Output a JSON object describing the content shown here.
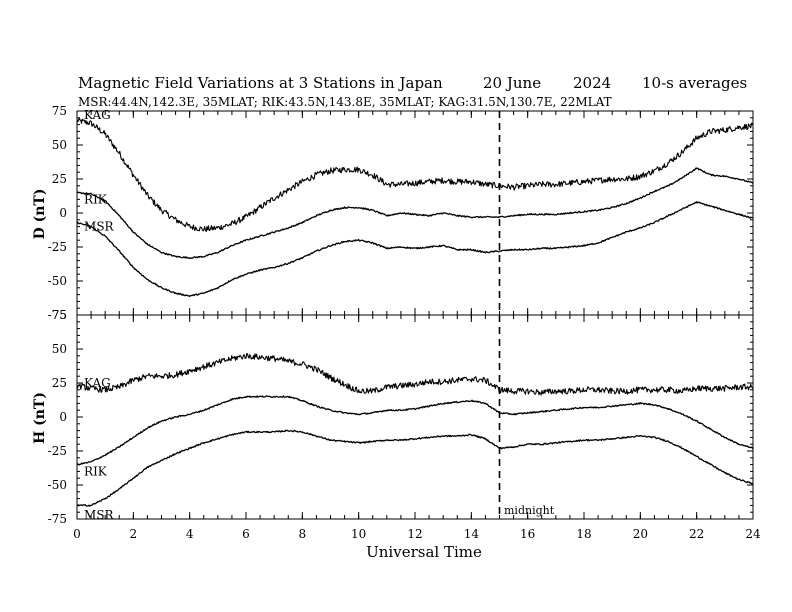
{
  "chart_data": {
    "type": "line",
    "title": {
      "main": "Magnetic Field Variations at 3 Stations in Japan",
      "date": "20 June",
      "year": "2024",
      "note": "10-s averages"
    },
    "subtitle": "MSR:44.4N,142.3E, 35MLAT;  RIK:43.5N,143.8E, 35MLAT;  KAG:31.5N,130.7E, 22MLAT",
    "xlabel": "Universal Time",
    "xlim": [
      0,
      24
    ],
    "x_ticks": [
      "0",
      "2",
      "4",
      "6",
      "8",
      "10",
      "12",
      "14",
      "16",
      "18",
      "20",
      "22",
      "24"
    ],
    "midnight": {
      "x": 15,
      "label": "midnight"
    },
    "panels": [
      {
        "ylabel": "D (nT)",
        "ylim": [
          -75,
          75
        ],
        "y_ticks": [
          "75",
          "50",
          "25",
          "0",
          "-25",
          "-50",
          "-75"
        ],
        "series": [
          {
            "name": "KAG",
            "noise": 2.2,
            "x": [
              0,
              0.5,
              1,
              1.5,
              2,
              2.5,
              3,
              3.5,
              4,
              4.5,
              5,
              5.5,
              6,
              6.5,
              7,
              7.5,
              8,
              8.5,
              9,
              9.5,
              10,
              10.5,
              11,
              11.5,
              12,
              12.5,
              13,
              13.5,
              14,
              14.5,
              15,
              15.5,
              16,
              16.5,
              17,
              17.5,
              18,
              18.5,
              19,
              19.5,
              20,
              20.5,
              21,
              21.5,
              22,
              22.5,
              23,
              23.5,
              24
            ],
            "y": [
              68,
              66,
              58,
              44,
              28,
              13,
              2,
              -5,
              -10,
              -12,
              -11,
              -8,
              -3,
              4,
              11,
              17,
              23,
              28,
              31,
              32,
              32,
              28,
              21,
              21,
              22,
              23,
              24,
              23,
              23,
              21,
              20,
              19,
              20,
              21,
              21,
              22,
              23,
              24,
              25,
              25,
              27,
              31,
              37,
              45,
              55,
              60,
              61,
              63,
              64
            ]
          },
          {
            "name": "RIK",
            "noise": 0.5,
            "x": [
              0,
              0.5,
              1,
              1.5,
              2,
              2.5,
              3,
              3.5,
              4,
              4.5,
              5,
              5.5,
              6,
              6.5,
              7,
              7.5,
              8,
              8.5,
              9,
              9.5,
              10,
              10.5,
              11,
              11.5,
              12,
              12.5,
              13,
              13.5,
              14,
              14.5,
              15,
              15.5,
              16,
              16.5,
              17,
              17.5,
              18,
              18.5,
              19,
              19.5,
              20,
              20.5,
              21,
              21.5,
              22,
              22.5,
              23,
              23.5,
              24
            ],
            "y": [
              15,
              14,
              9,
              -2,
              -14,
              -23,
              -29,
              -32,
              -33,
              -32,
              -29,
              -24,
              -20,
              -17,
              -14,
              -11,
              -7,
              -2,
              2,
              4,
              4,
              2,
              -2,
              0,
              -1,
              -2,
              0,
              -2,
              -3,
              -3,
              -3,
              -2,
              -1,
              -1,
              -1,
              0,
              1,
              2,
              4,
              7,
              11,
              16,
              20,
              26,
              33,
              28,
              27,
              25,
              22
            ]
          },
          {
            "name": "MSR",
            "noise": 0.5,
            "x": [
              0,
              0.5,
              1,
              1.5,
              2,
              2.5,
              3,
              3.5,
              4,
              4.5,
              5,
              5.5,
              6,
              6.5,
              7,
              7.5,
              8,
              8.5,
              9,
              9.5,
              10,
              10.5,
              11,
              11.5,
              12,
              12.5,
              13,
              13.5,
              14,
              14.5,
              15,
              15.5,
              16,
              16.5,
              17,
              17.5,
              18,
              18.5,
              19,
              19.5,
              20,
              20.5,
              21,
              21.5,
              22,
              22.5,
              23,
              23.5,
              24
            ],
            "y": [
              -7,
              -10,
              -17,
              -28,
              -40,
              -49,
              -55,
              -59,
              -61,
              -59,
              -55,
              -49,
              -45,
              -42,
              -40,
              -37,
              -33,
              -28,
              -24,
              -21,
              -20,
              -22,
              -26,
              -25,
              -26,
              -25,
              -24,
              -27,
              -27,
              -29,
              -28,
              -27,
              -27,
              -26,
              -26,
              -25,
              -24,
              -22,
              -18,
              -14,
              -11,
              -7,
              -2,
              3,
              8,
              5,
              2,
              -1,
              -4
            ]
          }
        ],
        "labels": [
          {
            "text": "KAG",
            "x": 0.25,
            "y": 72
          },
          {
            "text": "RIK",
            "x": 0.25,
            "y": 10
          },
          {
            "text": "MSR",
            "x": 0.25,
            "y": -10
          }
        ]
      },
      {
        "ylabel": "H (nT)",
        "ylim": [
          -75,
          75
        ],
        "y_ticks": [
          "75",
          "50",
          "25",
          "0",
          "-25",
          "-50",
          "-75"
        ],
        "series": [
          {
            "name": "KAG",
            "noise": 2.2,
            "x": [
              0,
              0.5,
              1,
              1.5,
              2,
              2.5,
              3,
              3.5,
              4,
              4.5,
              5,
              5.5,
              6,
              6.5,
              7,
              7.5,
              8,
              8.5,
              9,
              9.5,
              10,
              10.5,
              11,
              11.5,
              12,
              12.5,
              13,
              13.5,
              14,
              14.5,
              15,
              15.5,
              16,
              16.5,
              17,
              17.5,
              18,
              18.5,
              19,
              19.5,
              20,
              20.5,
              21,
              21.5,
              22,
              22.5,
              23,
              23.5,
              24
            ],
            "y": [
              23,
              21,
              20,
              22,
              27,
              30,
              30,
              31,
              34,
              37,
              40,
              43,
              45,
              44,
              43,
              41,
              39,
              35,
              29,
              24,
              19,
              19,
              22,
              23,
              24,
              26,
              26,
              27,
              28,
              27,
              20,
              19,
              19,
              18,
              19,
              19,
              20,
              20,
              19,
              19,
              20,
              20,
              20,
              19,
              21,
              21,
              21,
              22,
              22
            ]
          },
          {
            "name": "RIK",
            "noise": 0.5,
            "x": [
              0,
              0.5,
              1,
              1.5,
              2,
              2.5,
              3,
              3.5,
              4,
              4.5,
              5,
              5.5,
              6,
              6.5,
              7,
              7.5,
              8,
              8.5,
              9,
              9.5,
              10,
              10.5,
              11,
              11.5,
              12,
              12.5,
              13,
              13.5,
              14,
              14.5,
              15,
              15.5,
              16,
              16.5,
              17,
              17.5,
              18,
              18.5,
              19,
              19.5,
              20,
              20.5,
              21,
              21.5,
              22,
              22.5,
              23,
              23.5,
              24
            ],
            "y": [
              -35,
              -33,
              -28,
              -22,
              -15,
              -8,
              -3,
              0,
              2,
              5,
              9,
              13,
              15,
              15,
              15,
              15,
              12,
              8,
              5,
              3,
              2,
              3,
              5,
              5,
              6,
              8,
              10,
              11,
              12,
              10,
              3,
              2,
              3,
              4,
              5,
              6,
              7,
              7,
              8,
              9,
              10,
              9,
              6,
              2,
              -3,
              -9,
              -15,
              -20,
              -23
            ]
          },
          {
            "name": "MSR",
            "noise": 0.5,
            "x": [
              0,
              0.5,
              1,
              1.5,
              2,
              2.5,
              3,
              3.5,
              4,
              4.5,
              5,
              5.5,
              6,
              6.5,
              7,
              7.5,
              8,
              8.5,
              9,
              9.5,
              10,
              10.5,
              11,
              11.5,
              12,
              12.5,
              13,
              13.5,
              14,
              14.5,
              15,
              15.5,
              16,
              16.5,
              17,
              17.5,
              18,
              18.5,
              19,
              19.5,
              20,
              20.5,
              21,
              21.5,
              22,
              22.5,
              23,
              23.5,
              24
            ],
            "y": [
              -65,
              -65,
              -60,
              -53,
              -45,
              -37,
              -32,
              -27,
              -23,
              -19,
              -16,
              -13,
              -11,
              -11,
              -11,
              -10,
              -11,
              -14,
              -17,
              -18,
              -19,
              -18,
              -17,
              -17,
              -16,
              -15,
              -14,
              -14,
              -13,
              -16,
              -23,
              -22,
              -20,
              -20,
              -19,
              -18,
              -17,
              -17,
              -16,
              -15,
              -14,
              -15,
              -18,
              -23,
              -29,
              -35,
              -41,
              -46,
              -49
            ]
          }
        ],
        "labels": [
          {
            "text": "KAG",
            "x": 0.25,
            "y": 25
          },
          {
            "text": "RIK",
            "x": 0.25,
            "y": -40
          },
          {
            "text": "MSR",
            "x": 0.25,
            "y": -72
          }
        ]
      }
    ]
  }
}
